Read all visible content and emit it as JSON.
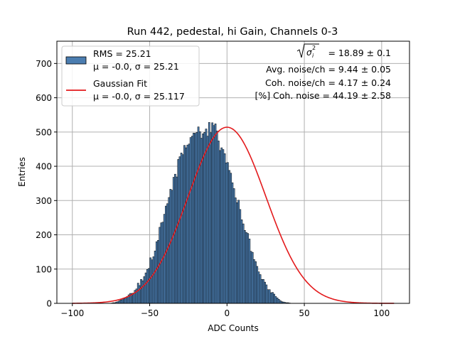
{
  "chart_data": {
    "type": "histogram",
    "title": "Run 442, pedestal, hi Gain, Channels 0-3",
    "xlabel": "ADC Counts",
    "ylabel": "Entries",
    "xlim": [
      -110,
      118
    ],
    "ylim": [
      0,
      765
    ],
    "xticks": [
      -100,
      -50,
      0,
      50,
      100
    ],
    "yticks": [
      0,
      100,
      200,
      300,
      400,
      500,
      600,
      700
    ],
    "grid": true,
    "bin_range": [
      -100,
      108
    ],
    "bin_width": 1,
    "colors": {
      "bars": "#4b7db0",
      "bar_edge": "#000000",
      "fit": "#e31a1c",
      "grid": "#b0b0b0"
    },
    "histogram": {
      "legend_label": "RMS = 25.21",
      "legend_sublabel": "μ = -0.0, σ = 25.21",
      "bin_start": -100,
      "counts": [
        0,
        0,
        0,
        0,
        0,
        0,
        0,
        0,
        0,
        0,
        0,
        0,
        0,
        0,
        0,
        0,
        0,
        0,
        0,
        0,
        0,
        0,
        0,
        0,
        0,
        1,
        2,
        2,
        4,
        5,
        8,
        10,
        13,
        14,
        16,
        20,
        25,
        29,
        29,
        30,
        38,
        42,
        59,
        52,
        70,
        66,
        78,
        89,
        99,
        102,
        133,
        127,
        136,
        153,
        180,
        184,
        222,
        235,
        237,
        260,
        284,
        291,
        309,
        333,
        330,
        368,
        377,
        369,
        420,
        428,
        439,
        434,
        461,
        454,
        462,
        465,
        484,
        488,
        497,
        496,
        499,
        515,
        501,
        482,
        495,
        499,
        509,
        488,
        528,
        498,
        527,
        519,
        524,
        503,
        474,
        446,
        454,
        449,
        437,
        410,
        411,
        388,
        380,
        352,
        335,
        308,
        294,
        301,
        274,
        244,
        232,
        213,
        207,
        204,
        188,
        152,
        149,
        128,
        122,
        108,
        92,
        84,
        70,
        70,
        62,
        54,
        40,
        40,
        31,
        32,
        27,
        20,
        16,
        12,
        8,
        5,
        4,
        3,
        2,
        2,
        1,
        0,
        0,
        0,
        0,
        0,
        0,
        0,
        0,
        0,
        0,
        0,
        0,
        0,
        0,
        0,
        0,
        0,
        0,
        0,
        0,
        0,
        0,
        0,
        0,
        0,
        0,
        0,
        0,
        0,
        0,
        0,
        0,
        0,
        0,
        0,
        0,
        0,
        0,
        0,
        0,
        0,
        0,
        0,
        0,
        0,
        0,
        0,
        0,
        0,
        0,
        0,
        0,
        0,
        0,
        0,
        0,
        0,
        0,
        0,
        0,
        0,
        0
      ]
    },
    "fit": {
      "legend_label": "Gaussian Fit",
      "legend_sublabel": "μ = -0.0, σ = 25.117",
      "mu": 0.0,
      "sigma": 25.117,
      "amplitude": 514,
      "x_range": [
        -100,
        108
      ]
    },
    "annotations": [
      "= 18.89 ± 0.1",
      "Avg. noise/ch = 9.44 ± 0.05",
      "Coh. noise/ch = 4.17 ± 0.24",
      "[%] Coh. noise = 44.19 ± 2.58"
    ],
    "legend_position": "upper left"
  }
}
